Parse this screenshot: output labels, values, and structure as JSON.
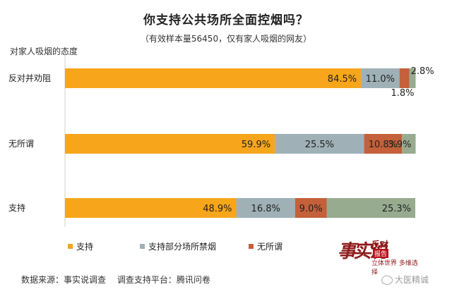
{
  "title": "你支持公共场所全面控烟吗？",
  "subtitle": "（有效样本量56450，仅有家人吸烟的网友）",
  "y_axis_title": "对家人吸烟的态度",
  "footer": {
    "source": "数据来源：事实说调查",
    "platform": "调查支持平台：腾讯问卷"
  },
  "logo": {
    "big": "事实说",
    "small1": "反对",
    "tag": "报告",
    "small2": "立体世界 多维选择"
  },
  "watermark": "大医精诚",
  "colors": {
    "support": "#f7a51b",
    "partial": "#9fb0b7",
    "indifferent": "#c4603a",
    "oppose": "#97ab8f"
  },
  "chart_data": {
    "type": "bar",
    "orientation": "horizontal",
    "stacked": true,
    "xlim": [
      0,
      100
    ],
    "categories": [
      "反对并劝阻",
      "无所谓",
      "支持"
    ],
    "series": [
      {
        "name": "支持",
        "color": "#f7a51b",
        "values": [
          84.5,
          59.9,
          48.9
        ],
        "labels": [
          "84.5%",
          "59.9%",
          "48.9%"
        ]
      },
      {
        "name": "支持部分场所禁烟",
        "color": "#9fb0b7",
        "values": [
          11.0,
          25.5,
          16.8
        ],
        "labels": [
          "11.0%",
          "25.5%",
          "16.8%"
        ]
      },
      {
        "name": "无所谓",
        "color": "#c4603a",
        "values": [
          2.8,
          10.8,
          9.0
        ],
        "labels": [
          "2.8%",
          "10.8%",
          "9.0%"
        ]
      },
      {
        "name": "",
        "color": "#97ab8f",
        "values": [
          1.8,
          3.9,
          25.3
        ],
        "labels": [
          "1.8%",
          "3.9%",
          "25.3%"
        ]
      }
    ],
    "legend": [
      "支持",
      "支持部分场所禁烟",
      "无所谓"
    ],
    "legend_position": "bottom-left"
  }
}
